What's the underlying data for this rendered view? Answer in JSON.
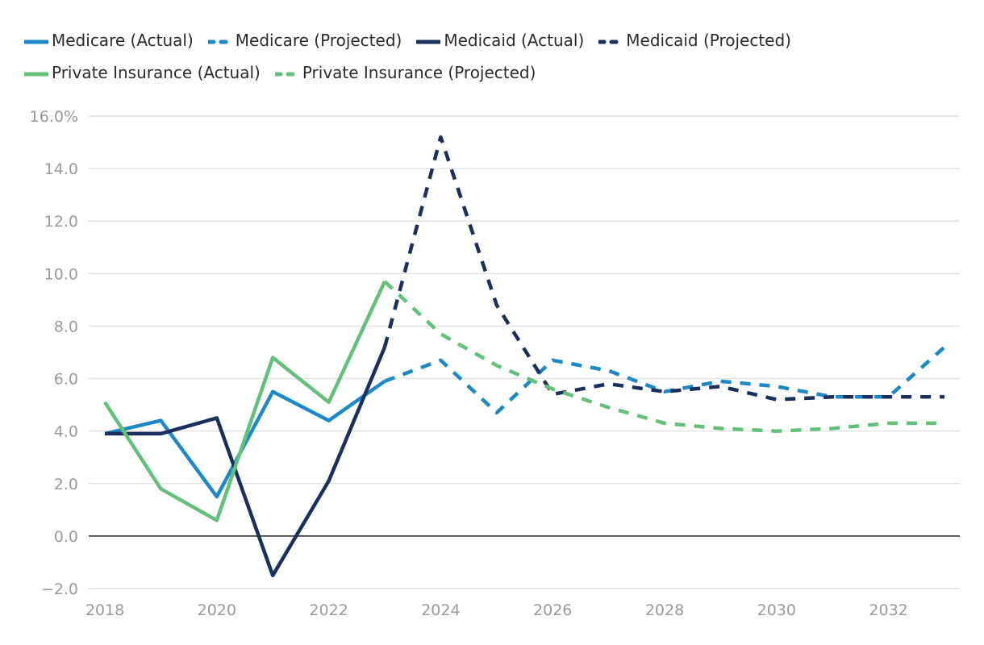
{
  "chart_data": {
    "type": "line",
    "title": "",
    "xlabel": "",
    "ylabel": "",
    "xlim": [
      2018,
      2033
    ],
    "ylim": [
      -2.0,
      16.0
    ],
    "x_ticks": [
      2018,
      2020,
      2022,
      2024,
      2026,
      2028,
      2030,
      2032
    ],
    "x_tick_labels": [
      "2018",
      "2020",
      "2022",
      "2024",
      "2026",
      "2028",
      "2030",
      "2032"
    ],
    "y_ticks": [
      -2.0,
      0.0,
      2.0,
      4.0,
      6.0,
      8.0,
      10.0,
      12.0,
      14.0,
      16.0
    ],
    "y_tick_labels": [
      "−2.0",
      "0.0",
      "2.0",
      "4.0",
      "6.0",
      "8.0",
      "10.0",
      "12.0",
      "14.0",
      "16.0%"
    ],
    "grid": true,
    "legend_position": "top",
    "series": [
      {
        "name": "Medicare (Actual)",
        "color": "#1c88c7",
        "dash": "solid",
        "x": [
          2018,
          2019,
          2020,
          2021,
          2022,
          2023
        ],
        "values": [
          3.9,
          4.4,
          1.5,
          5.5,
          4.4,
          5.9
        ]
      },
      {
        "name": "Medicare (Projected)",
        "color": "#1c88c7",
        "dash": "dashed",
        "x": [
          2023,
          2024,
          2025,
          2026,
          2027,
          2028,
          2029,
          2030,
          2031,
          2032,
          2033
        ],
        "values": [
          5.9,
          6.7,
          4.7,
          6.7,
          6.3,
          5.5,
          5.9,
          5.7,
          5.3,
          5.3,
          7.2
        ]
      },
      {
        "name": "Medicaid (Actual)",
        "color": "#1b2f5e",
        "dash": "solid",
        "x": [
          2018,
          2019,
          2020,
          2021,
          2022,
          2023
        ],
        "values": [
          3.9,
          3.9,
          4.5,
          -1.5,
          2.1,
          7.2
        ]
      },
      {
        "name": "Medicaid (Projected)",
        "color": "#1b2f5e",
        "dash": "dashed",
        "x": [
          2023,
          2024,
          2025,
          2026,
          2027,
          2028,
          2029,
          2030,
          2031,
          2032,
          2033
        ],
        "values": [
          7.2,
          15.2,
          8.8,
          5.4,
          5.8,
          5.5,
          5.7,
          5.2,
          5.3,
          5.3,
          5.3
        ]
      },
      {
        "name": "Private Insurance (Actual)",
        "color": "#62c07a",
        "dash": "solid",
        "x": [
          2018,
          2019,
          2020,
          2021,
          2022,
          2023
        ],
        "values": [
          5.1,
          1.8,
          0.6,
          6.8,
          5.1,
          9.7
        ]
      },
      {
        "name": "Private Insurance (Projected)",
        "color": "#62c07a",
        "dash": "dashed",
        "x": [
          2023,
          2024,
          2025,
          2026,
          2027,
          2028,
          2029,
          2030,
          2031,
          2032,
          2033
        ],
        "values": [
          9.7,
          7.7,
          6.5,
          5.6,
          4.9,
          4.3,
          4.1,
          4.0,
          4.1,
          4.3,
          4.3
        ]
      }
    ]
  }
}
